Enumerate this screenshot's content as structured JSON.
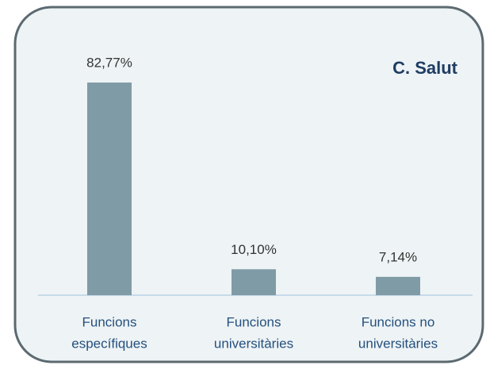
{
  "chart_data": {
    "type": "bar",
    "title": "C. Salut",
    "categories": [
      [
        "Funcions",
        "específiques"
      ],
      [
        "Funcions",
        "universitàries"
      ],
      [
        "Funcions no",
        "universitàries"
      ]
    ],
    "values": [
      82.77,
      10.1,
      7.14
    ],
    "value_labels": [
      "82,77%",
      "10,10%",
      "7,14%"
    ],
    "color": "#7f9ba6"
  }
}
